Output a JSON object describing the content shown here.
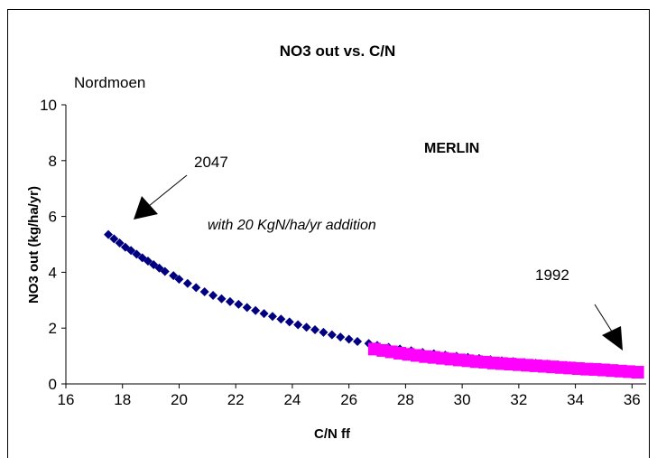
{
  "chart_data": {
    "type": "scatter",
    "title": "NO3 out vs. C/N",
    "xlabel": "C/N ff",
    "ylabel": "NO3 out (kg/ha/yr)",
    "xlim": [
      16,
      36.5
    ],
    "ylim": [
      0,
      10
    ],
    "x_ticks": [
      16,
      18,
      20,
      22,
      24,
      26,
      28,
      30,
      32,
      34,
      36
    ],
    "y_ticks": [
      0,
      2,
      4,
      6,
      8,
      10
    ],
    "grid": false,
    "series": [
      {
        "color": "#000080",
        "marker": "diamond",
        "x": [
          17.5,
          17.7,
          17.9,
          18.1,
          18.3,
          18.5,
          18.7,
          18.9,
          19.1,
          19.3,
          19.5,
          19.8,
          20.0,
          20.3,
          20.6,
          20.9,
          21.2,
          21.5,
          21.8,
          22.1,
          22.4,
          22.7,
          23.0,
          23.3,
          23.6,
          23.9,
          24.2,
          24.5,
          24.8,
          25.1,
          25.4,
          25.7,
          26.0,
          26.3,
          26.7,
          27.0,
          27.4,
          27.8,
          28.2,
          28.6,
          29.0,
          29.4,
          29.8,
          30.2,
          30.6,
          31.0,
          31.4,
          31.8,
          32.2,
          32.6,
          33.0,
          33.4,
          33.8,
          34.2,
          34.6,
          35.0,
          35.4,
          35.8,
          36.2
        ],
        "y": [
          5.35,
          5.2,
          5.05,
          4.9,
          4.78,
          4.65,
          4.52,
          4.4,
          4.27,
          4.15,
          4.03,
          3.88,
          3.75,
          3.6,
          3.45,
          3.3,
          3.17,
          3.05,
          2.95,
          2.85,
          2.74,
          2.63,
          2.52,
          2.42,
          2.32,
          2.22,
          2.12,
          2.03,
          1.94,
          1.85,
          1.76,
          1.68,
          1.6,
          1.52,
          1.45,
          1.38,
          1.31,
          1.25,
          1.19,
          1.13,
          1.08,
          1.03,
          0.99,
          0.95,
          0.91,
          0.87,
          0.83,
          0.8,
          0.77,
          0.74,
          0.71,
          0.68,
          0.65,
          0.62,
          0.59,
          0.56,
          0.53,
          0.51,
          0.48
        ]
      },
      {
        "color": "#ff00ff",
        "marker": "square",
        "x": [
          26.9,
          27.2,
          27.5,
          27.8,
          28.1,
          28.4,
          28.7,
          29.0,
          29.3,
          29.6,
          29.9,
          30.2,
          30.5,
          30.8,
          31.1,
          31.4,
          31.7,
          32.0,
          32.3,
          32.6,
          32.9,
          33.2,
          33.5,
          33.8,
          34.1,
          34.4,
          34.7,
          35.0,
          35.3,
          35.6,
          35.9,
          36.2
        ],
        "y": [
          1.25,
          1.2,
          1.15,
          1.1,
          1.06,
          1.02,
          0.98,
          0.95,
          0.92,
          0.89,
          0.86,
          0.83,
          0.8,
          0.78,
          0.75,
          0.73,
          0.71,
          0.69,
          0.67,
          0.65,
          0.63,
          0.61,
          0.59,
          0.57,
          0.55,
          0.53,
          0.52,
          0.5,
          0.48,
          0.46,
          0.44,
          0.42
        ]
      }
    ],
    "annotations": {
      "site": "Nordmoen",
      "model": "MERLIN",
      "scenario": "with 20 KgN/ha/yr addition",
      "start_year": "2047",
      "end_year": "1992"
    }
  }
}
